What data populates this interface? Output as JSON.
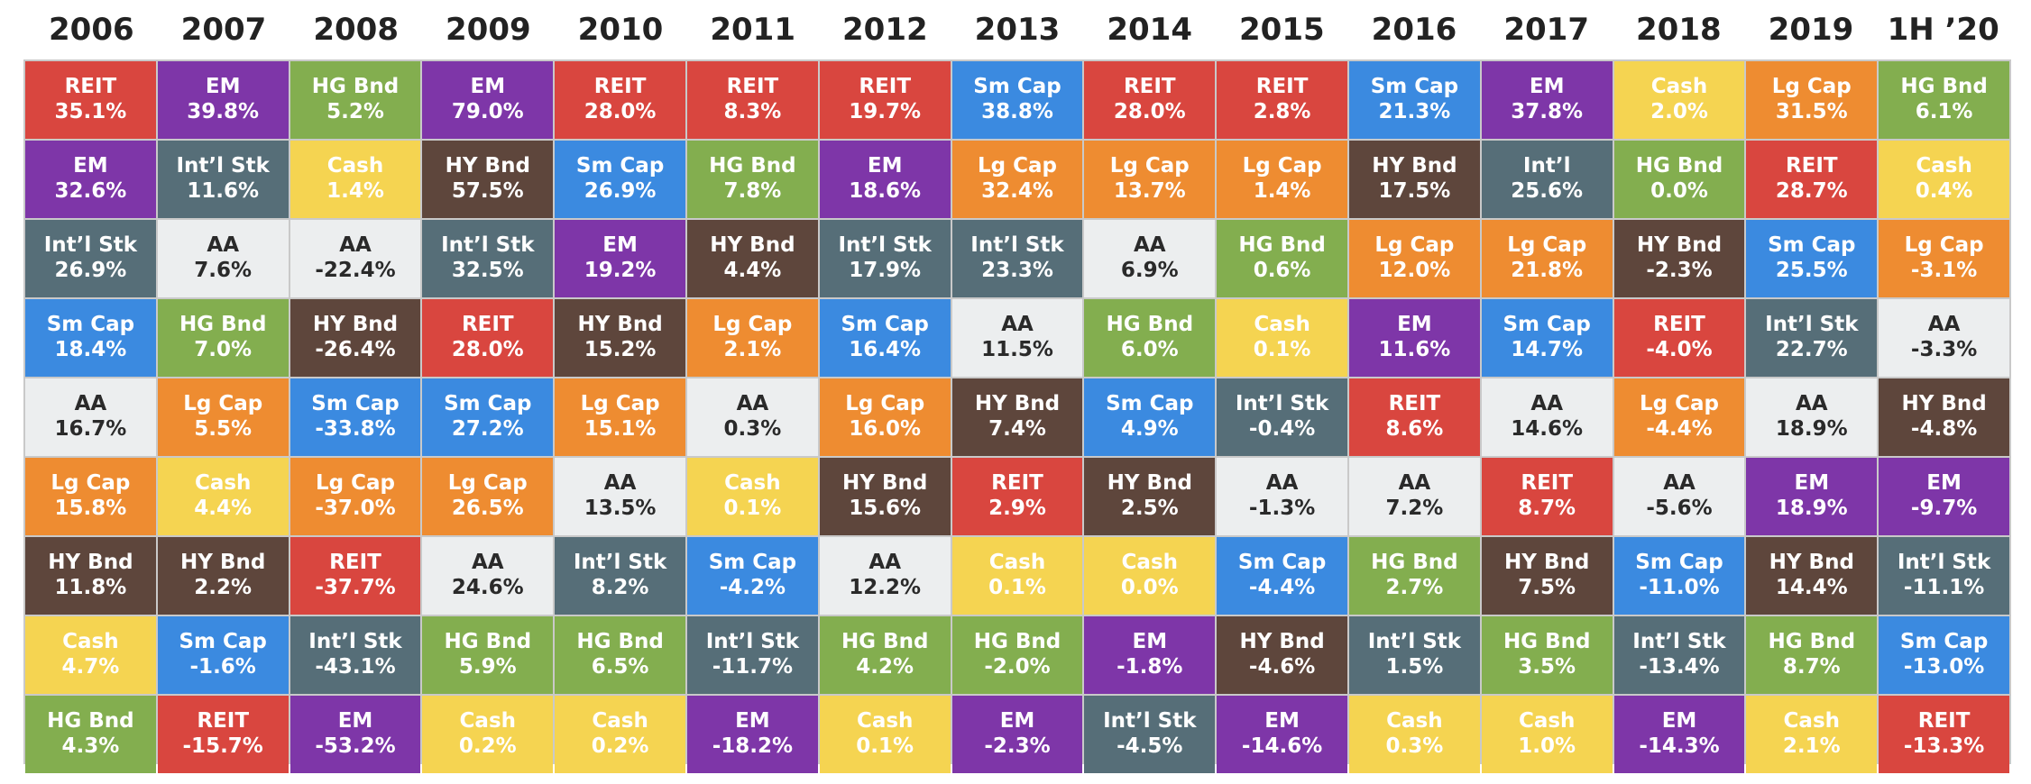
{
  "chart_data": {
    "type": "table",
    "title": "",
    "years": [
      "2006",
      "2007",
      "2008",
      "2009",
      "2010",
      "2011",
      "2012",
      "2013",
      "2014",
      "2015",
      "2016",
      "2017",
      "2018",
      "2019",
      "1H ’20"
    ],
    "asset_colors": {
      "REIT": "#d9463f",
      "EM": "#7e36a8",
      "HG Bnd": "#83ae4f",
      "Int’l Stk": "#566e78",
      "Int’l": "#566e78",
      "Sm Cap": "#3b8ae0",
      "AA": "#eceeef",
      "Lg Cap": "#ee8c31",
      "HY Bnd": "#5e463c",
      "Cash": "#f5d451"
    },
    "columns": [
      [
        [
          "REIT",
          "35.1%"
        ],
        [
          "EM",
          "32.6%"
        ],
        [
          "Int’l Stk",
          "26.9%"
        ],
        [
          "Sm Cap",
          "18.4%"
        ],
        [
          "AA",
          "16.7%"
        ],
        [
          "Lg Cap",
          "15.8%"
        ],
        [
          "HY Bnd",
          "11.8%"
        ],
        [
          "Cash",
          "4.7%"
        ],
        [
          "HG Bnd",
          "4.3%"
        ]
      ],
      [
        [
          "EM",
          "39.8%"
        ],
        [
          "Int’l Stk",
          "11.6%"
        ],
        [
          "AA",
          "7.6%"
        ],
        [
          "HG Bnd",
          "7.0%"
        ],
        [
          "Lg Cap",
          "5.5%"
        ],
        [
          "Cash",
          "4.4%"
        ],
        [
          "HY Bnd",
          "2.2%"
        ],
        [
          "Sm Cap",
          "-1.6%"
        ],
        [
          "REIT",
          "-15.7%"
        ]
      ],
      [
        [
          "HG Bnd",
          "5.2%"
        ],
        [
          "Cash",
          "1.4%"
        ],
        [
          "AA",
          "-22.4%"
        ],
        [
          "HY Bnd",
          "-26.4%"
        ],
        [
          "Sm Cap",
          "-33.8%"
        ],
        [
          "Lg Cap",
          "-37.0%"
        ],
        [
          "REIT",
          "-37.7%"
        ],
        [
          "Int’l Stk",
          "-43.1%"
        ],
        [
          "EM",
          "-53.2%"
        ]
      ],
      [
        [
          "EM",
          "79.0%"
        ],
        [
          "HY Bnd",
          "57.5%"
        ],
        [
          "Int’l Stk",
          "32.5%"
        ],
        [
          "REIT",
          "28.0%"
        ],
        [
          "Sm Cap",
          "27.2%"
        ],
        [
          "Lg Cap",
          "26.5%"
        ],
        [
          "AA",
          "24.6%"
        ],
        [
          "HG Bnd",
          "5.9%"
        ],
        [
          "Cash",
          "0.2%"
        ]
      ],
      [
        [
          "REIT",
          "28.0%"
        ],
        [
          "Sm Cap",
          "26.9%"
        ],
        [
          "EM",
          "19.2%"
        ],
        [
          "HY Bnd",
          "15.2%"
        ],
        [
          "Lg Cap",
          "15.1%"
        ],
        [
          "AA",
          "13.5%"
        ],
        [
          "Int’l Stk",
          "8.2%"
        ],
        [
          "HG Bnd",
          "6.5%"
        ],
        [
          "Cash",
          "0.2%"
        ]
      ],
      [
        [
          "REIT",
          "8.3%"
        ],
        [
          "HG Bnd",
          "7.8%"
        ],
        [
          "HY Bnd",
          "4.4%"
        ],
        [
          "Lg Cap",
          "2.1%"
        ],
        [
          "AA",
          "0.3%"
        ],
        [
          "Cash",
          "0.1%"
        ],
        [
          "Sm Cap",
          "-4.2%"
        ],
        [
          "Int’l Stk",
          "-11.7%"
        ],
        [
          "EM",
          "-18.2%"
        ]
      ],
      [
        [
          "REIT",
          "19.7%"
        ],
        [
          "EM",
          "18.6%"
        ],
        [
          "Int’l Stk",
          "17.9%"
        ],
        [
          "Sm Cap",
          "16.4%"
        ],
        [
          "Lg Cap",
          "16.0%"
        ],
        [
          "HY Bnd",
          "15.6%"
        ],
        [
          "AA",
          "12.2%"
        ],
        [
          "HG Bnd",
          "4.2%"
        ],
        [
          "Cash",
          "0.1%"
        ]
      ],
      [
        [
          "Sm Cap",
          "38.8%"
        ],
        [
          "Lg Cap",
          "32.4%"
        ],
        [
          "Int’l Stk",
          "23.3%"
        ],
        [
          "AA",
          "11.5%"
        ],
        [
          "HY Bnd",
          "7.4%"
        ],
        [
          "REIT",
          "2.9%"
        ],
        [
          "Cash",
          "0.1%"
        ],
        [
          "HG Bnd",
          "-2.0%"
        ],
        [
          "EM",
          "-2.3%"
        ]
      ],
      [
        [
          "REIT",
          "28.0%"
        ],
        [
          "Lg Cap",
          "13.7%"
        ],
        [
          "AA",
          "6.9%"
        ],
        [
          "HG Bnd",
          "6.0%"
        ],
        [
          "Sm Cap",
          "4.9%"
        ],
        [
          "HY Bnd",
          "2.5%"
        ],
        [
          "Cash",
          "0.0%"
        ],
        [
          "EM",
          "-1.8%"
        ],
        [
          "Int’l Stk",
          "-4.5%"
        ]
      ],
      [
        [
          "REIT",
          "2.8%"
        ],
        [
          "Lg Cap",
          "1.4%"
        ],
        [
          "HG Bnd",
          "0.6%"
        ],
        [
          "Cash",
          "0.1%"
        ],
        [
          "Int’l Stk",
          "-0.4%"
        ],
        [
          "AA",
          "-1.3%"
        ],
        [
          "Sm Cap",
          "-4.4%"
        ],
        [
          "HY Bnd",
          "-4.6%"
        ],
        [
          "EM",
          "-14.6%"
        ]
      ],
      [
        [
          "Sm Cap",
          "21.3%"
        ],
        [
          "HY Bnd",
          "17.5%"
        ],
        [
          "Lg Cap",
          "12.0%"
        ],
        [
          "EM",
          "11.6%"
        ],
        [
          "REIT",
          "8.6%"
        ],
        [
          "AA",
          "7.2%"
        ],
        [
          "HG Bnd",
          "2.7%"
        ],
        [
          "Int’l Stk",
          "1.5%"
        ],
        [
          "Cash",
          "0.3%"
        ]
      ],
      [
        [
          "EM",
          "37.8%"
        ],
        [
          "Int’l",
          "25.6%"
        ],
        [
          "Lg Cap",
          "21.8%"
        ],
        [
          "Sm Cap",
          "14.7%"
        ],
        [
          "AA",
          "14.6%"
        ],
        [
          "REIT",
          "8.7%"
        ],
        [
          "HY Bnd",
          "7.5%"
        ],
        [
          "HG Bnd",
          "3.5%"
        ],
        [
          "Cash",
          "1.0%"
        ]
      ],
      [
        [
          "Cash",
          "2.0%"
        ],
        [
          "HG Bnd",
          "0.0%"
        ],
        [
          "HY Bnd",
          "-2.3%"
        ],
        [
          "REIT",
          "-4.0%"
        ],
        [
          "Lg Cap",
          "-4.4%"
        ],
        [
          "AA",
          "-5.6%"
        ],
        [
          "Sm Cap",
          "-11.0%"
        ],
        [
          "Int’l Stk",
          "-13.4%"
        ],
        [
          "EM",
          "-14.3%"
        ]
      ],
      [
        [
          "Lg Cap",
          "31.5%"
        ],
        [
          "REIT",
          "28.7%"
        ],
        [
          "Sm Cap",
          "25.5%"
        ],
        [
          "Int’l Stk",
          "22.7%"
        ],
        [
          "AA",
          "18.9%"
        ],
        [
          "EM",
          "18.9%"
        ],
        [
          "HY Bnd",
          "14.4%"
        ],
        [
          "HG Bnd",
          "8.7%"
        ],
        [
          "Cash",
          "2.1%"
        ]
      ],
      [
        [
          "HG Bnd",
          "6.1%"
        ],
        [
          "Cash",
          "0.4%"
        ],
        [
          "Lg Cap",
          "-3.1%"
        ],
        [
          "AA",
          "-3.3%"
        ],
        [
          "HY Bnd",
          "-4.8%"
        ],
        [
          "EM",
          "-9.7%"
        ],
        [
          "Int’l Stk",
          "-11.1%"
        ],
        [
          "Sm Cap",
          "-13.0%"
        ],
        [
          "REIT",
          "-13.3%"
        ]
      ]
    ]
  }
}
